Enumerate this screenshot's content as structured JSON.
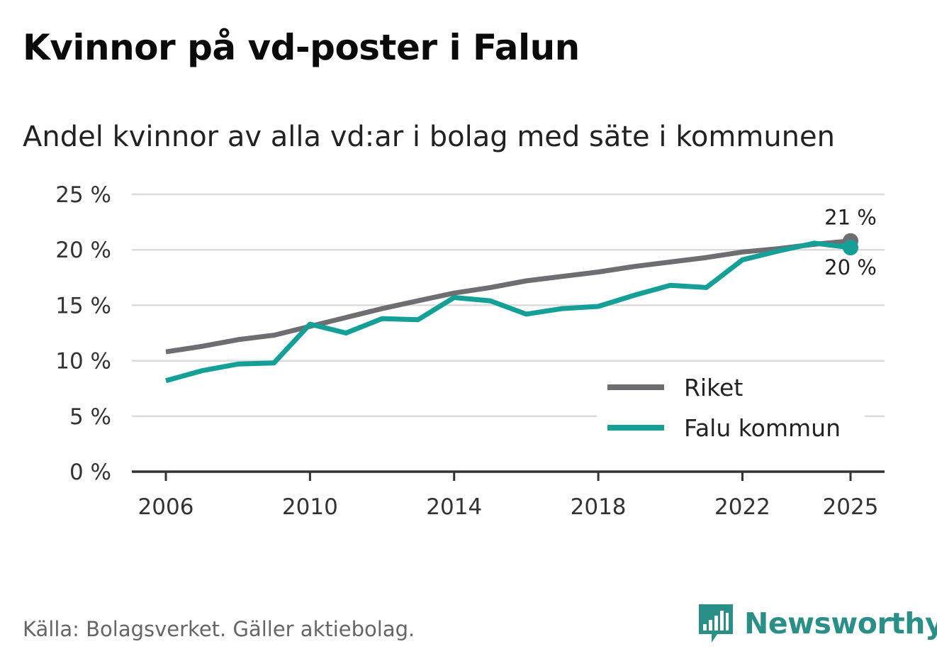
{
  "title": "Kvinnor på vd-poster i Falun",
  "subtitle": "Andel kvinnor av alla vd:ar i bolag med säte i kommunen",
  "source": "Källa: Bolagsverket. Gäller aktiebolag.",
  "brand": {
    "name": "Newsworthy",
    "icon": "newsworthy-logo-icon",
    "color": "#2a8f86"
  },
  "colors": {
    "riket": "#6e6d72",
    "falu": "#14a096",
    "grid": "#dcdcdc",
    "axis": "#333333"
  },
  "chart_data": {
    "type": "line",
    "title": "Kvinnor på vd-poster i Falun",
    "subtitle": "Andel kvinnor av alla vd:ar i bolag med säte i kommunen",
    "xlabel": "",
    "ylabel": "",
    "x": [
      2006,
      2007,
      2008,
      2009,
      2010,
      2011,
      2012,
      2013,
      2014,
      2015,
      2016,
      2017,
      2018,
      2019,
      2020,
      2021,
      2022,
      2023,
      2024,
      2025
    ],
    "xlim": [
      2006,
      2025
    ],
    "ylim": [
      0,
      25
    ],
    "x_ticks": [
      2006,
      2010,
      2014,
      2018,
      2022,
      2025
    ],
    "x_tick_labels": [
      "2006",
      "2010",
      "2014",
      "2018",
      "2022",
      "2025"
    ],
    "y_ticks": [
      0,
      5,
      10,
      15,
      20,
      25
    ],
    "y_tick_labels": [
      "0 %",
      "5 %",
      "10 %",
      "15 %",
      "20 %",
      "25 %"
    ],
    "grid": true,
    "legend_position": "bottom-right",
    "series": [
      {
        "name": "Riket",
        "color": "#6e6d72",
        "values": [
          10.8,
          11.3,
          11.9,
          12.3,
          13.1,
          13.9,
          14.7,
          15.4,
          16.1,
          16.6,
          17.2,
          17.6,
          18.0,
          18.5,
          18.9,
          19.3,
          19.8,
          20.1,
          20.5,
          20.8
        ],
        "end_label": "21 %"
      },
      {
        "name": "Falu kommun",
        "color": "#14a096",
        "values": [
          8.2,
          9.1,
          9.7,
          9.8,
          13.3,
          12.5,
          13.8,
          13.7,
          15.7,
          15.4,
          14.2,
          14.7,
          14.9,
          15.9,
          16.8,
          16.6,
          19.1,
          19.9,
          20.6,
          20.2
        ],
        "end_label": "20 %"
      }
    ]
  }
}
